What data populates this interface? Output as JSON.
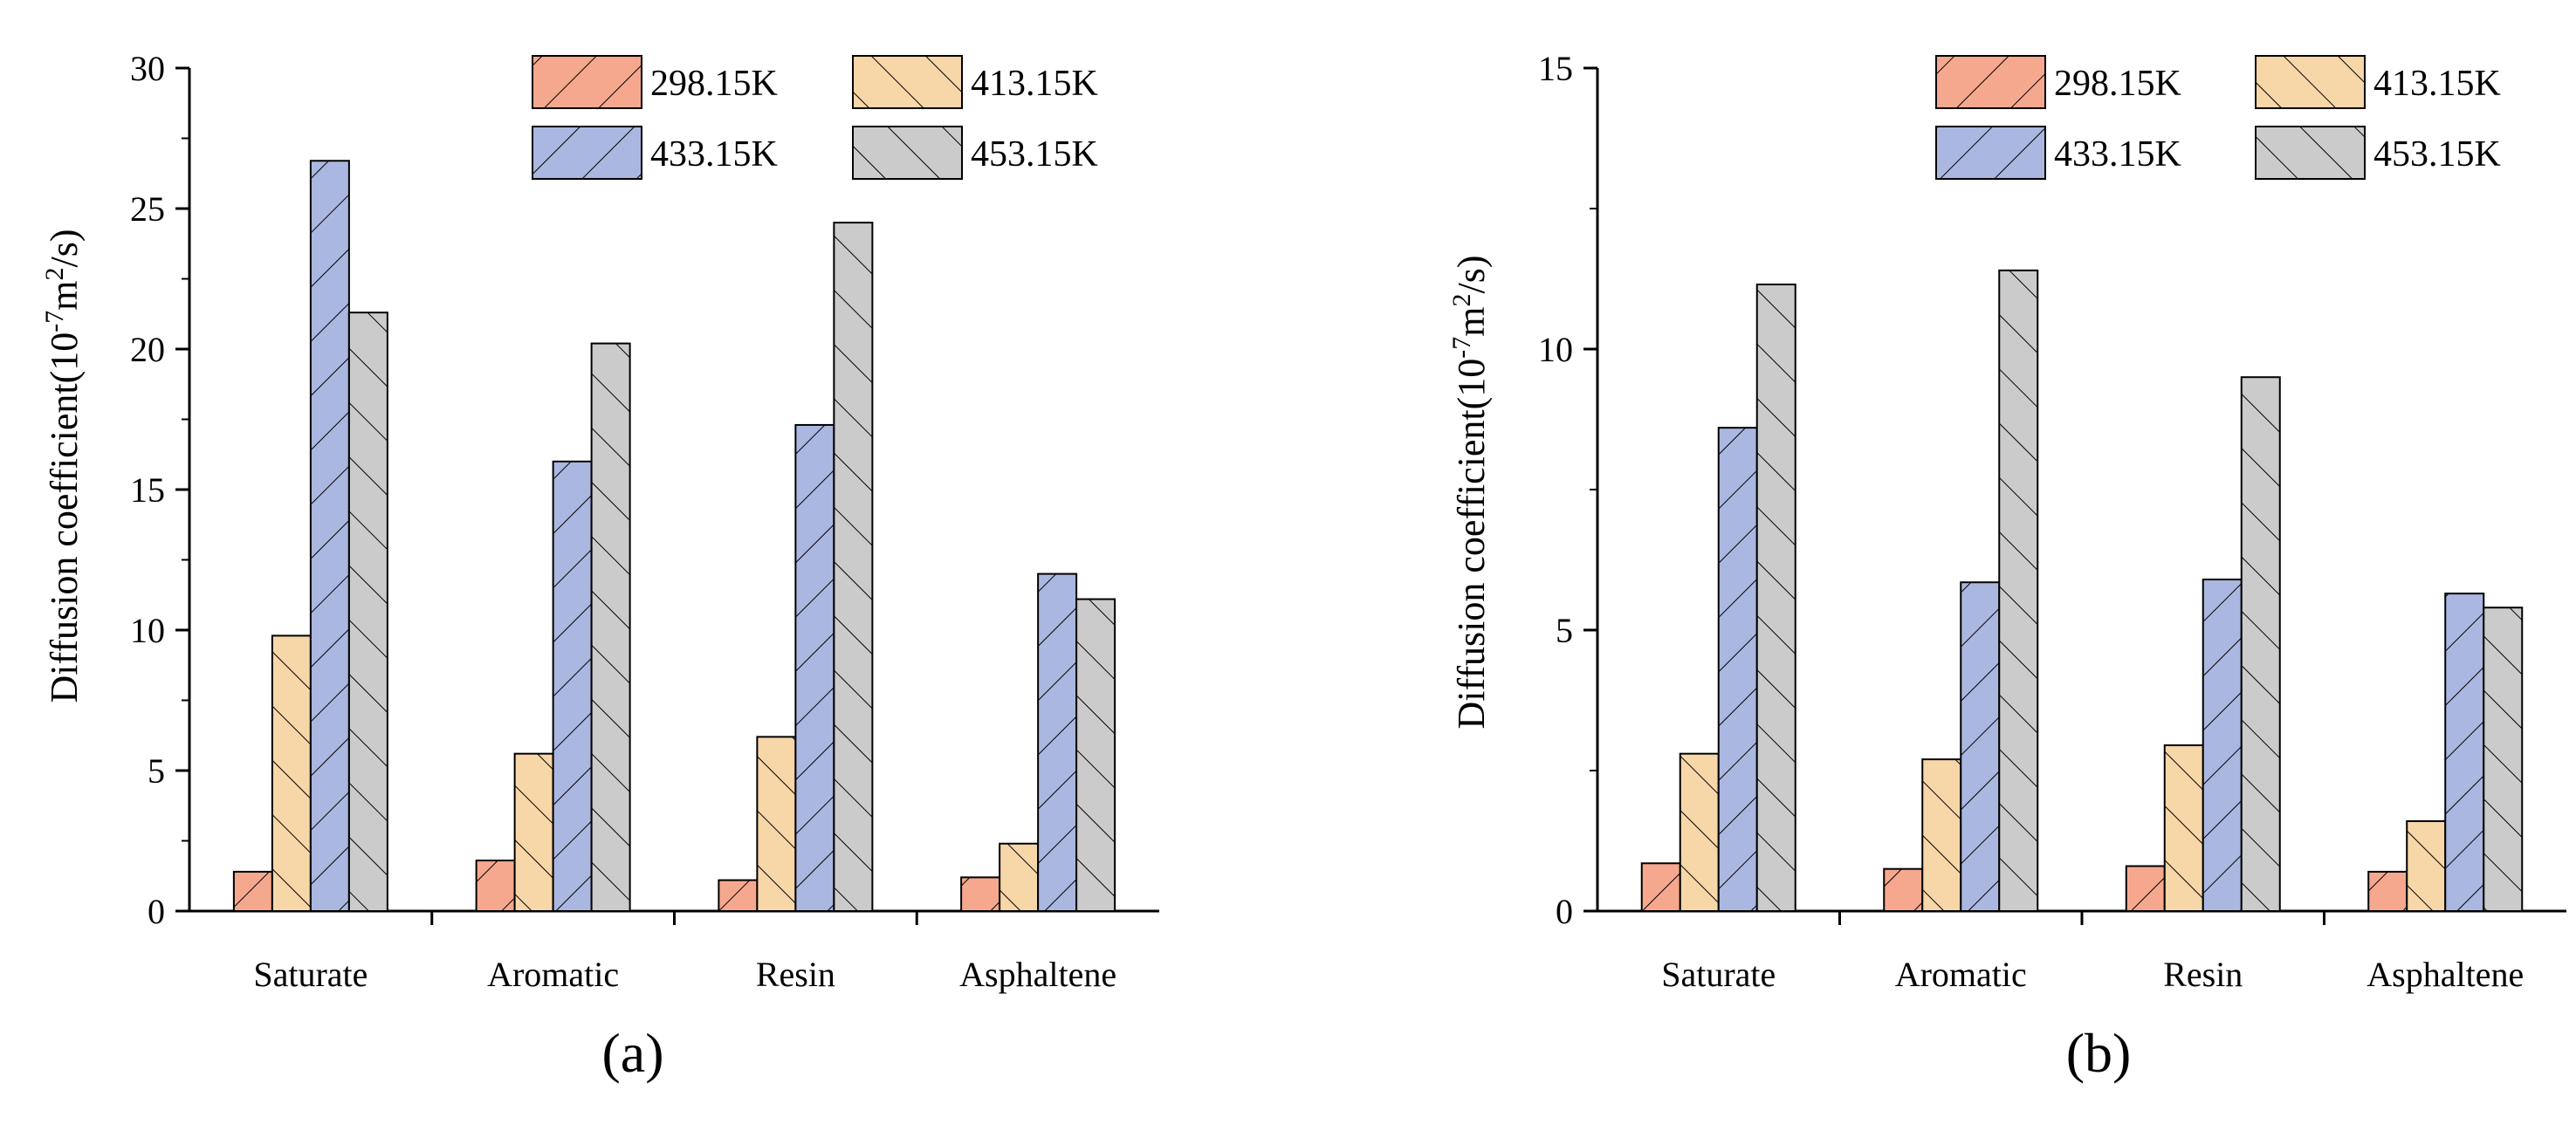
{
  "figure_labels": [
    "(a)",
    "(b)"
  ],
  "chart_data": [
    {
      "type": "bar",
      "panel_label": "(a)",
      "title": "",
      "xlabel": "",
      "ylabel": "Diffusion coefficient(10-7m2/s)",
      "ylabel_parts": {
        "main": "Diffusion coefficient(10",
        "exp1": "-7",
        "mid": "m",
        "exp2": "2",
        "end": "/s)"
      },
      "ylim": [
        0,
        30
      ],
      "yticks": [
        0,
        5,
        10,
        15,
        20,
        25,
        30
      ],
      "categories": [
        "Saturate",
        "Aromatic",
        "Resin",
        "Asphaltene"
      ],
      "legend_position": "top-right",
      "series": [
        {
          "name": "298.15K",
          "color": "#f5a88e",
          "hatch": "forward",
          "values": [
            1.4,
            1.8,
            1.1,
            1.2
          ]
        },
        {
          "name": "413.15K",
          "color": "#f7d6a8",
          "hatch": "back",
          "values": [
            9.8,
            5.6,
            6.2,
            2.4
          ]
        },
        {
          "name": "433.15K",
          "color": "#aab7e0",
          "hatch": "forward",
          "values": [
            26.7,
            16.0,
            17.3,
            12.0
          ]
        },
        {
          "name": "453.15K",
          "color": "#cbcbcb",
          "hatch": "back",
          "values": [
            21.3,
            20.2,
            24.5,
            11.1
          ]
        }
      ]
    },
    {
      "type": "bar",
      "panel_label": "(b)",
      "title": "",
      "xlabel": "",
      "ylabel": "Diffusion coefficient(10-7m2/s)",
      "ylabel_parts": {
        "main": "Diffusion coefficient(10",
        "exp1": "-7",
        "mid": "m",
        "exp2": "2",
        "end": "/s)"
      },
      "ylim": [
        0,
        15
      ],
      "yticks": [
        0,
        5,
        10,
        15
      ],
      "categories": [
        "Saturate",
        "Aromatic",
        "Resin",
        "Asphaltene"
      ],
      "legend_position": "top-right",
      "series": [
        {
          "name": "298.15K",
          "color": "#f5a88e",
          "hatch": "forward",
          "values": [
            0.85,
            0.75,
            0.8,
            0.7
          ]
        },
        {
          "name": "413.15K",
          "color": "#f7d6a8",
          "hatch": "back",
          "values": [
            2.8,
            2.7,
            2.95,
            1.6
          ]
        },
        {
          "name": "433.15K",
          "color": "#aab7e0",
          "hatch": "forward",
          "values": [
            8.6,
            5.85,
            5.9,
            5.65
          ]
        },
        {
          "name": "453.15K",
          "color": "#cbcbcb",
          "hatch": "back",
          "values": [
            11.15,
            11.4,
            9.5,
            5.4
          ]
        }
      ]
    }
  ]
}
